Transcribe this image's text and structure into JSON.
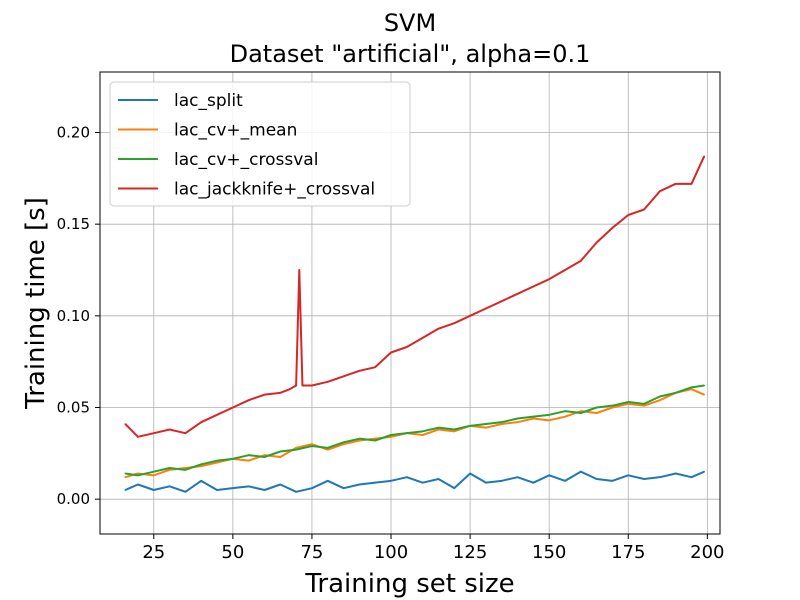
{
  "chart_data": {
    "type": "line",
    "title_line1": "SVM",
    "title_line2": "Dataset \"artificial\", alpha=0.1",
    "xlabel": "Training set size",
    "ylabel": "Training time [s]",
    "xlim": [
      8,
      204
    ],
    "ylim": [
      -0.019,
      0.233
    ],
    "xticks": [
      25,
      50,
      75,
      100,
      125,
      150,
      175,
      200
    ],
    "xtick_labels": [
      "25",
      "50",
      "75",
      "100",
      "125",
      "150",
      "175",
      "200"
    ],
    "yticks": [
      0.0,
      0.05,
      0.1,
      0.15,
      0.2
    ],
    "ytick_labels": [
      "0.00",
      "0.05",
      "0.10",
      "0.15",
      "0.20"
    ],
    "grid": true,
    "legend_position": "top-left",
    "series": [
      {
        "name": "lac_split",
        "color": "#1f77b4",
        "x": [
          16,
          20,
          25,
          30,
          35,
          40,
          45,
          50,
          55,
          60,
          65,
          70,
          75,
          80,
          85,
          90,
          95,
          100,
          105,
          110,
          115,
          120,
          125,
          130,
          135,
          140,
          145,
          150,
          155,
          160,
          165,
          170,
          175,
          180,
          185,
          190,
          195,
          199
        ],
        "y": [
          0.005,
          0.008,
          0.005,
          0.007,
          0.004,
          0.01,
          0.005,
          0.006,
          0.007,
          0.005,
          0.008,
          0.004,
          0.006,
          0.01,
          0.006,
          0.008,
          0.009,
          0.01,
          0.012,
          0.009,
          0.011,
          0.006,
          0.014,
          0.009,
          0.01,
          0.012,
          0.009,
          0.013,
          0.01,
          0.015,
          0.011,
          0.01,
          0.013,
          0.011,
          0.012,
          0.014,
          0.012,
          0.015
        ]
      },
      {
        "name": "lac_cv+_mean",
        "color": "#ff7f0e",
        "x": [
          16,
          20,
          25,
          30,
          35,
          40,
          45,
          50,
          55,
          60,
          65,
          70,
          75,
          80,
          85,
          90,
          95,
          100,
          105,
          110,
          115,
          120,
          125,
          130,
          135,
          140,
          145,
          150,
          155,
          160,
          165,
          170,
          175,
          180,
          185,
          190,
          195,
          199
        ],
        "y": [
          0.012,
          0.014,
          0.013,
          0.016,
          0.017,
          0.018,
          0.02,
          0.022,
          0.021,
          0.024,
          0.023,
          0.028,
          0.03,
          0.027,
          0.03,
          0.032,
          0.033,
          0.034,
          0.036,
          0.035,
          0.038,
          0.037,
          0.04,
          0.039,
          0.041,
          0.042,
          0.044,
          0.043,
          0.045,
          0.048,
          0.047,
          0.05,
          0.052,
          0.051,
          0.054,
          0.058,
          0.06,
          0.057
        ]
      },
      {
        "name": "lac_cv+_crossval",
        "color": "#2ca02c",
        "x": [
          16,
          20,
          25,
          30,
          35,
          40,
          45,
          50,
          55,
          60,
          65,
          70,
          75,
          80,
          85,
          90,
          95,
          100,
          105,
          110,
          115,
          120,
          125,
          130,
          135,
          140,
          145,
          150,
          155,
          160,
          165,
          170,
          175,
          180,
          185,
          190,
          195,
          199
        ],
        "y": [
          0.014,
          0.013,
          0.015,
          0.017,
          0.016,
          0.019,
          0.021,
          0.022,
          0.024,
          0.023,
          0.026,
          0.027,
          0.029,
          0.028,
          0.031,
          0.033,
          0.032,
          0.035,
          0.036,
          0.037,
          0.039,
          0.038,
          0.04,
          0.041,
          0.042,
          0.044,
          0.045,
          0.046,
          0.048,
          0.047,
          0.05,
          0.051,
          0.053,
          0.052,
          0.056,
          0.058,
          0.061,
          0.062
        ]
      },
      {
        "name": "lac_jackknife+_crossval",
        "color": "#d62728",
        "x": [
          16,
          20,
          25,
          30,
          35,
          40,
          45,
          50,
          55,
          60,
          65,
          68,
          70,
          71,
          72,
          75,
          80,
          85,
          90,
          95,
          100,
          105,
          110,
          115,
          120,
          125,
          130,
          135,
          140,
          145,
          150,
          155,
          160,
          165,
          170,
          175,
          180,
          185,
          190,
          195,
          199
        ],
        "y": [
          0.041,
          0.034,
          0.036,
          0.038,
          0.036,
          0.042,
          0.046,
          0.05,
          0.054,
          0.057,
          0.058,
          0.06,
          0.062,
          0.125,
          0.062,
          0.062,
          0.064,
          0.067,
          0.07,
          0.072,
          0.08,
          0.083,
          0.088,
          0.093,
          0.096,
          0.1,
          0.104,
          0.108,
          0.112,
          0.116,
          0.12,
          0.125,
          0.13,
          0.14,
          0.148,
          0.155,
          0.158,
          0.168,
          0.172,
          0.172,
          0.187
        ]
      }
    ]
  }
}
